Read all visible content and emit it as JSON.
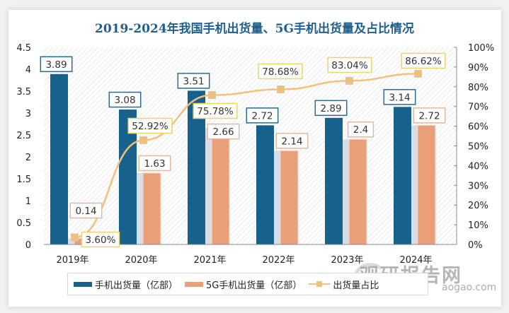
{
  "title": "2019-2024年我国手机出货量、5G手机出货量及占比情况",
  "colors": {
    "phone_bar": "#17628c",
    "fiveg_bar": "#e9a07a",
    "ratio_line": "#f4c07a",
    "title": "#1f5f8b"
  },
  "legend": {
    "phone": "手机出货量（亿部）",
    "fiveg": "5G手机出货量（亿部）",
    "ratio": "出货量占比"
  },
  "watermark": {
    "name": "观研报告网",
    "url": "aogao.com"
  },
  "chart_data": {
    "type": "bar",
    "title": "2019-2024年我国手机出货量、5G手机出货量及占比情况",
    "categories": [
      "2019年",
      "2020年",
      "2021年",
      "2022年",
      "2023年",
      "2024年"
    ],
    "series": [
      {
        "name": "手机出货量（亿部）",
        "type": "bar",
        "axis": "left",
        "values": [
          3.89,
          3.08,
          3.51,
          2.72,
          2.89,
          3.14
        ],
        "labels": [
          "3.89",
          "3.08",
          "3.51",
          "2.72",
          "2.89",
          "3.14"
        ]
      },
      {
        "name": "5G手机出货量（亿部）",
        "type": "bar",
        "axis": "left",
        "values": [
          0.14,
          1.63,
          2.66,
          2.14,
          2.4,
          2.72
        ],
        "labels": [
          "0.14",
          "1.63",
          "2.66",
          "2.14",
          "2.4",
          "2.72"
        ]
      },
      {
        "name": "出货量占比",
        "type": "line",
        "axis": "right",
        "values": [
          3.6,
          52.92,
          75.78,
          78.68,
          83.04,
          86.62
        ],
        "labels": [
          "3.60%",
          "52.92%",
          "75.78%",
          "78.68%",
          "83.04%",
          "86.62%"
        ]
      }
    ],
    "y_left": {
      "min": 0,
      "max": 4.5,
      "ticks": [
        "0",
        "0.5",
        "1",
        "1.5",
        "2",
        "2.5",
        "3",
        "3.5",
        "4",
        "4.5"
      ]
    },
    "y_right": {
      "min": 0,
      "max": 100,
      "ticks": [
        "0%",
        "10%",
        "20%",
        "30%",
        "40%",
        "50%",
        "60%",
        "70%",
        "80%",
        "90%",
        "100%"
      ]
    },
    "xlabel": "",
    "ylabel": "",
    "grid": false,
    "legend_position": "bottom"
  }
}
